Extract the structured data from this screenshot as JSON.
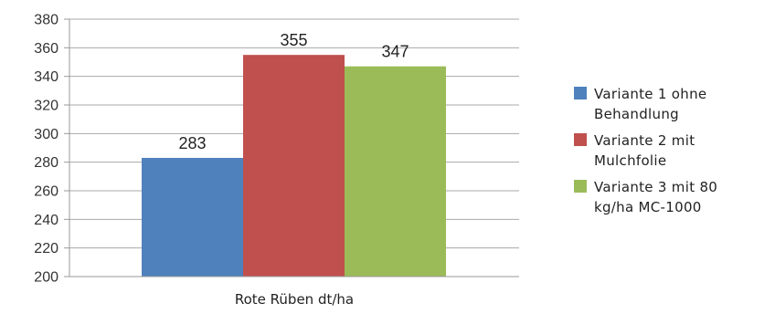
{
  "chart_data": {
    "type": "bar",
    "categories": [
      "Rote Rüben dt/ha"
    ],
    "series": [
      {
        "name": "Variante 1 ohne Behandlung",
        "values": [
          283
        ],
        "label": "283",
        "color": "#4f81bd"
      },
      {
        "name": "Variante 2 mit Mulchfolie",
        "values": [
          355
        ],
        "label": "355",
        "color": "#c0504d"
      },
      {
        "name": "Variante 3 mit 80 kg/ha MC-1000",
        "values": [
          347
        ],
        "label": "347",
        "color": "#9bbb59"
      }
    ],
    "ylim": [
      200,
      380
    ],
    "yticks": [
      "200",
      "220",
      "240",
      "260",
      "280",
      "300",
      "320",
      "340",
      "360",
      "380"
    ],
    "grid": true,
    "legend_position": "right",
    "title": "",
    "xlabel": "",
    "ylabel": ""
  },
  "legend": {
    "items": [
      {
        "line1": "Variante 1 ohne",
        "line2": "Behandlung"
      },
      {
        "line1": "Variante 2 mit",
        "line2": "Mulchfolie"
      },
      {
        "line1": "Variante 3 mit 80",
        "line2": "kg/ha MC-1000"
      }
    ]
  }
}
